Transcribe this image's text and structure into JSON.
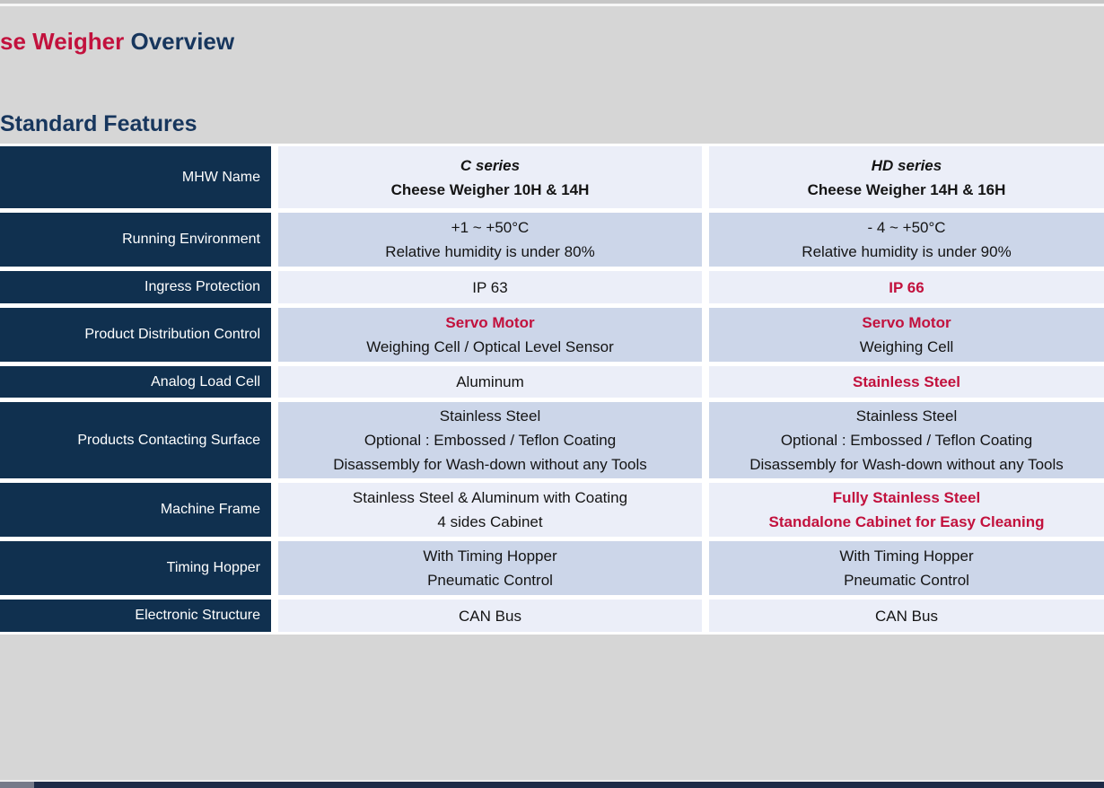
{
  "page": {
    "title_red": "se Weigher",
    "title_navy": " Overview",
    "section_heading": "Standard Features"
  },
  "colors": {
    "page_bg": "#d6d6d6",
    "accent_red": "#c2113d",
    "title_navy": "#17365d",
    "header_navy": "#10304f",
    "row_light": "#ebeef8",
    "row_dark": "#ccd6e9",
    "bottom_bar": "#1d2b47",
    "bottom_bar_left": "#757a89"
  },
  "table": {
    "rows": [
      {
        "header": "MHW Name",
        "cells": [
          {
            "lines": [
              {
                "text": "C series",
                "style": "series"
              },
              {
                "text": "Cheese Weigher 10H & 14H",
                "style": "model"
              }
            ]
          },
          {
            "lines": [
              {
                "text": "HD series",
                "style": "series"
              },
              {
                "text": "Cheese Weigher 14H & 16H",
                "style": "model"
              }
            ]
          }
        ]
      },
      {
        "header": "Running Environment",
        "cells": [
          {
            "lines": [
              {
                "text": "+1 ~ +50°C"
              },
              {
                "text": "Relative humidity is under 80%"
              }
            ]
          },
          {
            "lines": [
              {
                "text": "- 4 ~ +50°C"
              },
              {
                "text": "Relative humidity is under 90%"
              }
            ]
          }
        ]
      },
      {
        "header": "Ingress Protection",
        "cells": [
          {
            "lines": [
              {
                "text": "IP 63"
              }
            ]
          },
          {
            "lines": [
              {
                "text": "IP 66",
                "style": "red"
              }
            ]
          }
        ]
      },
      {
        "header": "Product Distribution Control",
        "cells": [
          {
            "lines": [
              {
                "text": "Servo Motor",
                "style": "red"
              },
              {
                "text": "Weighing Cell / Optical Level Sensor"
              }
            ]
          },
          {
            "lines": [
              {
                "text": "Servo Motor",
                "style": "red"
              },
              {
                "text": "Weighing Cell"
              }
            ]
          }
        ]
      },
      {
        "header": "Analog Load Cell",
        "cells": [
          {
            "lines": [
              {
                "text": "Aluminum"
              }
            ]
          },
          {
            "lines": [
              {
                "text": "Stainless Steel",
                "style": "red"
              }
            ]
          }
        ]
      },
      {
        "header": "Products Contacting Surface",
        "cells": [
          {
            "lines": [
              {
                "text": "Stainless Steel"
              },
              {
                "text": "Optional : Embossed / Teflon Coating"
              },
              {
                "text": "Disassembly for Wash-down without any Tools"
              }
            ]
          },
          {
            "lines": [
              {
                "text": "Stainless Steel"
              },
              {
                "text": "Optional : Embossed / Teflon Coating"
              },
              {
                "text": "Disassembly for Wash-down without any Tools"
              }
            ]
          }
        ]
      },
      {
        "header": "Machine Frame",
        "cells": [
          {
            "lines": [
              {
                "text": "Stainless Steel & Aluminum with Coating"
              },
              {
                "text": "4 sides Cabinet"
              }
            ]
          },
          {
            "lines": [
              {
                "text": "Fully Stainless Steel",
                "style": "red"
              },
              {
                "text": "Standalone Cabinet for Easy Cleaning",
                "style": "red"
              }
            ]
          }
        ]
      },
      {
        "header": "Timing Hopper",
        "cells": [
          {
            "lines": [
              {
                "text": "With Timing Hopper"
              },
              {
                "text": "Pneumatic Control"
              }
            ]
          },
          {
            "lines": [
              {
                "text": "With Timing Hopper"
              },
              {
                "text": "Pneumatic Control"
              }
            ]
          }
        ]
      },
      {
        "header": "Electronic Structure",
        "cells": [
          {
            "lines": [
              {
                "text": "CAN Bus"
              }
            ]
          },
          {
            "lines": [
              {
                "text": "CAN Bus"
              }
            ]
          }
        ]
      }
    ]
  }
}
